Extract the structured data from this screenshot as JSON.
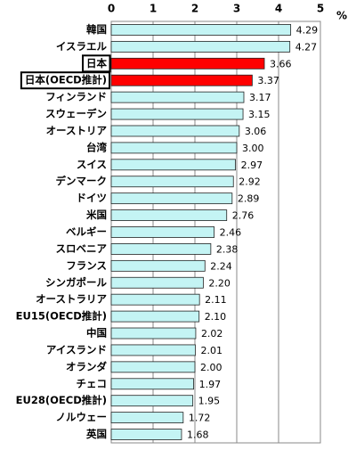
{
  "chart_data": {
    "type": "bar",
    "orientation": "horizontal",
    "x_axis_label": "%",
    "categories": [
      "韓国",
      "イスラエル",
      "日本",
      "日本(OECD推計)",
      "フィンランド",
      "スウェーデン",
      "オーストリア",
      "台湾",
      "スイス",
      "デンマーク",
      "ドイツ",
      "米国",
      "ベルギー",
      "スロベニア",
      "フランス",
      "シンガポール",
      "オーストラリア",
      "EU15(OECD推計)",
      "中国",
      "アイスランド",
      "オランダ",
      "チェコ",
      "EU28(OECD推計)",
      "ノルウェー",
      "英国"
    ],
    "values": [
      4.29,
      4.27,
      3.66,
      3.37,
      3.17,
      3.15,
      3.06,
      3.0,
      2.97,
      2.92,
      2.89,
      2.76,
      2.46,
      2.38,
      2.24,
      2.2,
      2.11,
      2.1,
      2.02,
      2.01,
      2.0,
      1.97,
      1.95,
      1.72,
      1.68
    ],
    "value_labels": [
      "4.29",
      "4.27",
      "3.66",
      "3.37",
      "3.17",
      "3.15",
      "3.06",
      "3.00",
      "2.97",
      "2.92",
      "2.89",
      "2.76",
      "2.46",
      "2.38",
      "2.24",
      "2.20",
      "2.11",
      "2.10",
      "2.02",
      "2.01",
      "2.00",
      "1.97",
      "1.95",
      "1.72",
      "1.68"
    ],
    "color": "#c4f4f4",
    "colors": [
      "#c4f4f4",
      "#c4f4f4",
      "#ff0000",
      "#ff0000",
      "#c4f4f4",
      "#c4f4f4",
      "#c4f4f4",
      "#c4f4f4",
      "#c4f4f4",
      "#c4f4f4",
      "#c4f4f4",
      "#c4f4f4",
      "#c4f4f4",
      "#c4f4f4",
      "#c4f4f4",
      "#c4f4f4",
      "#c4f4f4",
      "#c4f4f4",
      "#c4f4f4",
      "#c4f4f4",
      "#c4f4f4",
      "#c4f4f4",
      "#c4f4f4",
      "#c4f4f4",
      "#c4f4f4"
    ],
    "xlim": [
      0,
      5
    ],
    "xticks": [
      0,
      1,
      2,
      3,
      4,
      5
    ],
    "grid": true
  }
}
